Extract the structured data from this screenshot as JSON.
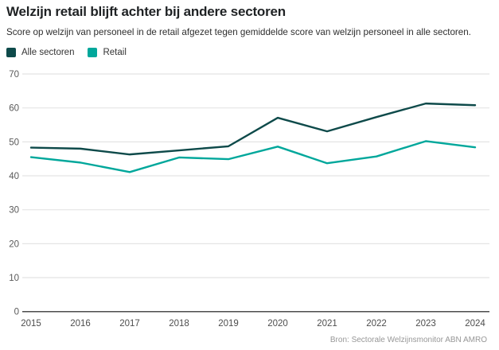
{
  "header": {
    "title": "Welzijn retail blijft achter bij andere sectoren",
    "subtitle": "Score op welzijn van personeel in de retail afgezet tegen gemiddelde score van welzijn personeel in alle sectoren."
  },
  "legend": [
    {
      "label": "Alle sectoren",
      "color": "#0e4a4a"
    },
    {
      "label": "Retail",
      "color": "#00a79b"
    }
  ],
  "footer": {
    "source": "Bron: Sectorale Welzijnsmonitor ABN AMRO"
  },
  "colors": {
    "alle_sectoren": "#0e4a4a",
    "retail": "#00a79b",
    "gridline": "#e4e4e4",
    "axis": "#4d4d4d"
  },
  "chart_data": {
    "type": "line",
    "title": "Welzijn retail blijft achter bij andere sectoren",
    "subtitle": "Score op welzijn van personeel in de retail afgezet tegen gemiddelde score van welzijn personeel in alle sectoren.",
    "x": [
      2015,
      2016,
      2017,
      2018,
      2019,
      2020,
      2021,
      2022,
      2023,
      2024
    ],
    "series": [
      {
        "name": "Alle sectoren",
        "color": "#0e4a4a",
        "values": [
          48.3,
          48.0,
          46.3,
          47.5,
          48.7,
          57.1,
          53.1,
          57.3,
          61.3,
          60.8
        ]
      },
      {
        "name": "Retail",
        "color": "#00a79b",
        "values": [
          45.5,
          43.9,
          41.1,
          45.4,
          44.9,
          48.6,
          43.7,
          45.7,
          50.2,
          48.4
        ]
      }
    ],
    "xlabel": "",
    "ylabel": "",
    "ylim": [
      0,
      70
    ],
    "yticks": [
      0,
      10,
      20,
      30,
      40,
      50,
      60,
      70
    ],
    "grid": true,
    "legend_position": "top-left",
    "source": "Bron: Sectorale Welzijnsmonitor ABN AMRO"
  }
}
